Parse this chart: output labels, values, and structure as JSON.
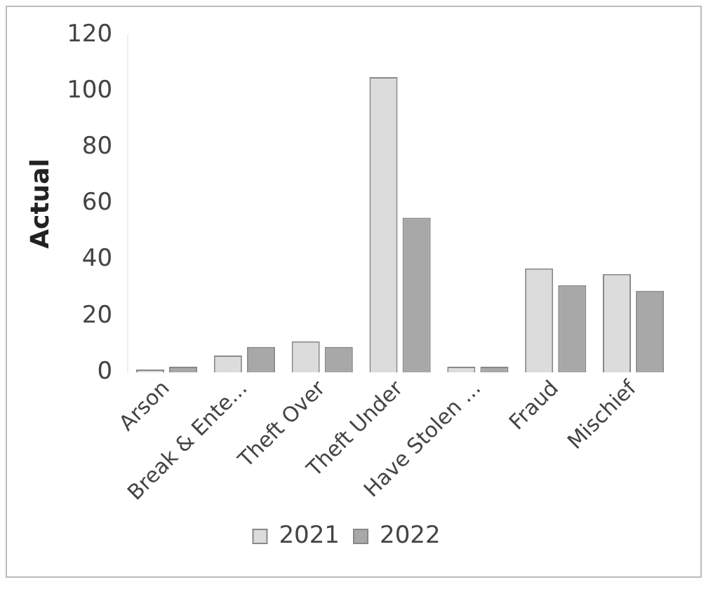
{
  "chart_data": {
    "type": "bar",
    "ylabel": "Actual",
    "categories": [
      "Arson",
      "Break & Ente...",
      "Theft Over",
      "Theft Under",
      "Have Stolen ...",
      "Fraud",
      "Mischief"
    ],
    "series": [
      {
        "name": "2021",
        "color": "#dcdcdc",
        "values": [
          1,
          6,
          11,
          105,
          2,
          37,
          35
        ]
      },
      {
        "name": "2022",
        "color": "#a8a8a8",
        "values": [
          2,
          9,
          9,
          55,
          2,
          31,
          29
        ]
      }
    ],
    "ylim": [
      0,
      120
    ],
    "yticks": [
      0,
      20,
      40,
      60,
      80,
      100,
      120
    ],
    "grid": false,
    "legend": "bottom"
  }
}
